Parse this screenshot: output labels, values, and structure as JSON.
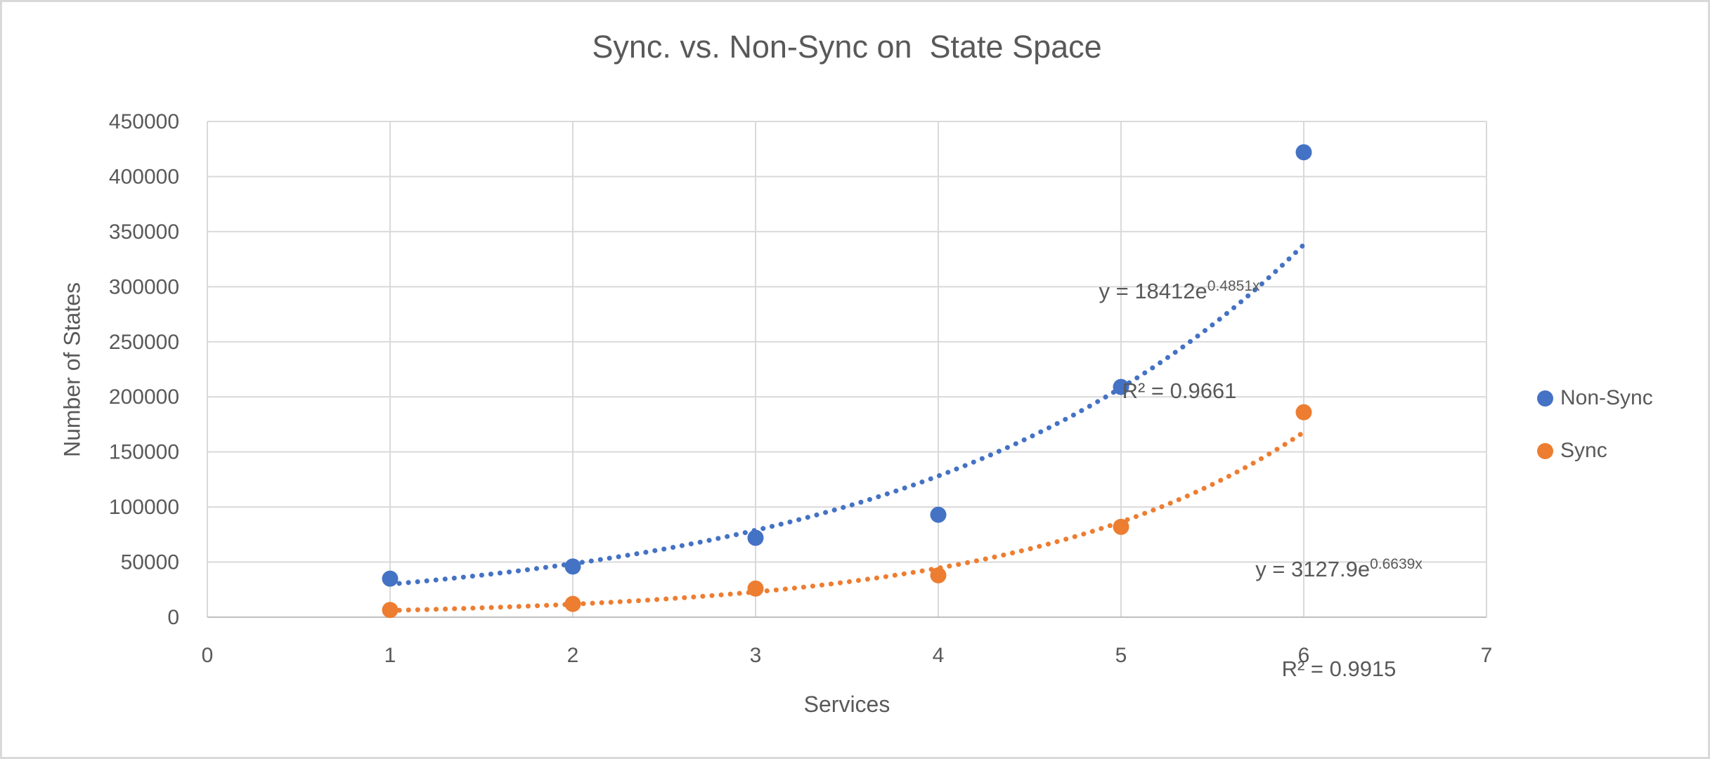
{
  "title": "Sync. vs. Non-Sync on  State Space",
  "colors": {
    "non_sync_series": "#4472C4",
    "sync_series": "#ED7D31",
    "text": "#595959",
    "gridline": "#D9D9D9",
    "axis_line": "#BFBFBF",
    "canvas_border": "#D9D9D9"
  },
  "legend": {
    "position": "right",
    "items": [
      {
        "label": "Non-Sync",
        "color": "#4472C4"
      },
      {
        "label": "Sync",
        "color": "#ED7D31"
      }
    ]
  },
  "chart_data": {
    "type": "scatter",
    "title": "Sync. vs. Non-Sync on  State Space",
    "xlabel": "Services",
    "ylabel": "Number of States",
    "xlim": [
      0,
      7
    ],
    "ylim": [
      0,
      450000
    ],
    "x_ticks": [
      0,
      1,
      2,
      3,
      4,
      5,
      6,
      7
    ],
    "y_ticks": [
      0,
      50000,
      100000,
      150000,
      200000,
      250000,
      300000,
      350000,
      400000,
      450000
    ],
    "grid": true,
    "legend_position": "right",
    "x": [
      1,
      2,
      3,
      4,
      5,
      6
    ],
    "series": [
      {
        "name": "Non-Sync",
        "color": "#4472C4",
        "values": [
          35000,
          46000,
          72000,
          93000,
          209000,
          422000
        ],
        "trendline": {
          "type": "exponential",
          "coefficient": 18412,
          "exponent": 0.4851,
          "r_squared": 0.9661,
          "eq_base": "y = 18412e",
          "eq_exponent": "0.4851x",
          "r2_label": "R² = 0.9661",
          "range": [
            1,
            6
          ]
        }
      },
      {
        "name": "Sync",
        "color": "#ED7D31",
        "values": [
          6500,
          12000,
          26000,
          38000,
          82000,
          186000
        ],
        "trendline": {
          "type": "exponential",
          "coefficient": 3127.9,
          "exponent": 0.6639,
          "r_squared": 0.9915,
          "eq_base": "y = 3127.9e",
          "eq_exponent": "0.6639x",
          "r2_label": "R² = 0.9915",
          "range": [
            1,
            6
          ]
        }
      }
    ]
  }
}
